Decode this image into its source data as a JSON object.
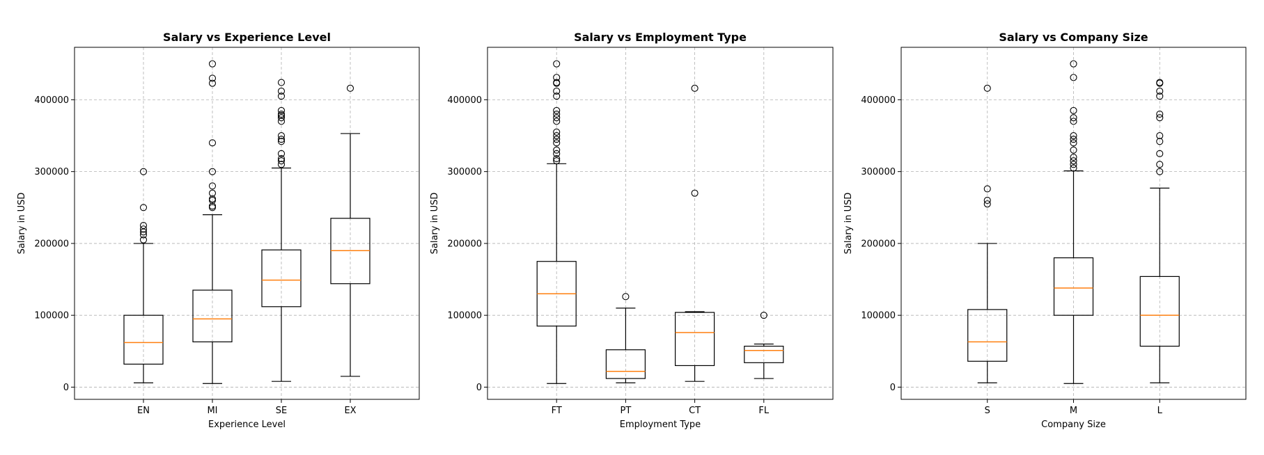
{
  "chart_data": [
    {
      "type": "boxplot",
      "title": "Salary vs Experience Level",
      "xlabel": "Experience Level",
      "ylabel": "Salary in USD",
      "ylim": [
        -17000,
        473000
      ],
      "yticks": [
        0,
        100000,
        200000,
        300000,
        400000
      ],
      "grid": true,
      "categories": [
        "EN",
        "MI",
        "SE",
        "EX"
      ],
      "boxes": [
        {
          "whislo": 6000,
          "q1": 32000,
          "med": 62000,
          "q3": 100000,
          "whishi": 200000,
          "fliers": [
            205000,
            212000,
            216000,
            220000,
            225000,
            250000,
            300000
          ]
        },
        {
          "whislo": 5000,
          "q1": 63000,
          "med": 95000,
          "q3": 135000,
          "whishi": 240000,
          "fliers": [
            250000,
            252000,
            260000,
            262000,
            270000,
            280000,
            300000,
            340000,
            423000,
            430000,
            450000
          ]
        },
        {
          "whislo": 8000,
          "q1": 112000,
          "med": 149000,
          "q3": 191000,
          "whishi": 305000,
          "fliers": [
            310000,
            315000,
            318000,
            325000,
            342000,
            345000,
            350000,
            370000,
            375000,
            378000,
            380000,
            385000,
            405000,
            412000,
            424000
          ]
        },
        {
          "whislo": 15000,
          "q1": 144000,
          "med": 190000,
          "q3": 235000,
          "whishi": 353000,
          "fliers": [
            416000
          ]
        }
      ]
    },
    {
      "type": "boxplot",
      "title": "Salary vs Employment Type",
      "xlabel": "Employment Type",
      "ylabel": "Salary in USD",
      "ylim": [
        -17000,
        473000
      ],
      "yticks": [
        0,
        100000,
        200000,
        300000,
        400000
      ],
      "grid": true,
      "categories": [
        "FT",
        "PT",
        "CT",
        "FL"
      ],
      "boxes": [
        {
          "whislo": 5000,
          "q1": 85000,
          "med": 130000,
          "q3": 175000,
          "whishi": 311000,
          "fliers": [
            315000,
            318000,
            325000,
            330000,
            340000,
            345000,
            350000,
            355000,
            370000,
            375000,
            380000,
            385000,
            405000,
            412000,
            423000,
            424000,
            431000,
            450000
          ]
        },
        {
          "whislo": 6000,
          "q1": 12000,
          "med": 22000,
          "q3": 52000,
          "whishi": 110000,
          "fliers": [
            126000
          ]
        },
        {
          "whislo": 8000,
          "q1": 30000,
          "med": 76000,
          "q3": 104000,
          "whishi": 105000,
          "fliers": [
            270000,
            416000
          ]
        },
        {
          "whislo": 12000,
          "q1": 34000,
          "med": 51000,
          "q3": 57000,
          "whishi": 60000,
          "fliers": [
            100000
          ]
        }
      ]
    },
    {
      "type": "boxplot",
      "title": "Salary vs Company Size",
      "xlabel": "Company Size",
      "ylabel": "Salary in USD",
      "ylim": [
        -17000,
        473000
      ],
      "yticks": [
        0,
        100000,
        200000,
        300000,
        400000
      ],
      "grid": true,
      "categories": [
        "S",
        "M",
        "L"
      ],
      "boxes": [
        {
          "whislo": 6000,
          "q1": 36000,
          "med": 63000,
          "q3": 108000,
          "whishi": 200000,
          "fliers": [
            255000,
            260000,
            276000,
            416000
          ]
        },
        {
          "whislo": 5000,
          "q1": 100000,
          "med": 138000,
          "q3": 180000,
          "whishi": 301000,
          "fliers": [
            305000,
            310000,
            315000,
            320000,
            330000,
            340000,
            345000,
            350000,
            370000,
            375000,
            385000,
            431000,
            450000
          ]
        },
        {
          "whislo": 6000,
          "q1": 57000,
          "med": 100000,
          "q3": 154000,
          "whishi": 277000,
          "fliers": [
            300000,
            310000,
            325000,
            342000,
            350000,
            375000,
            380000,
            405000,
            412000,
            423000,
            424000
          ]
        }
      ]
    }
  ]
}
